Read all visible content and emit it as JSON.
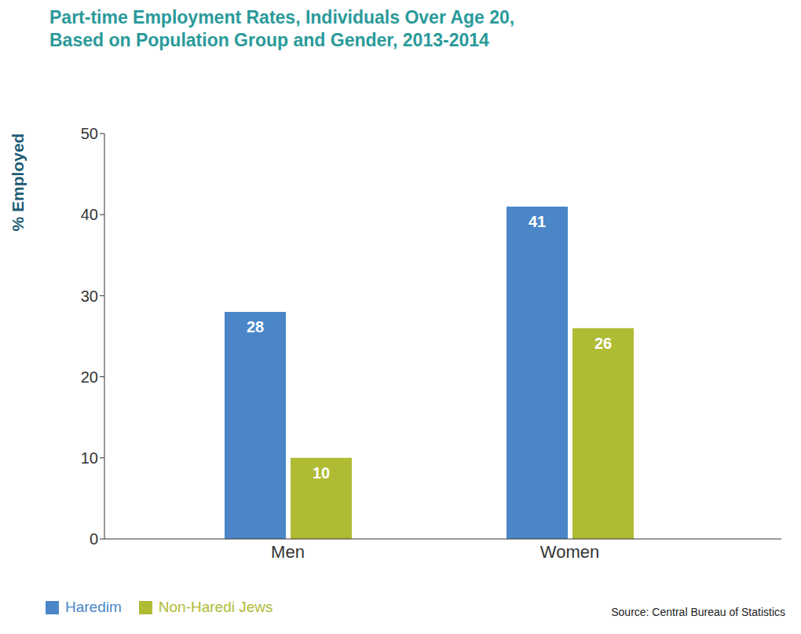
{
  "chart_data": {
    "type": "bar",
    "title": "Part-time Employment Rates, Individuals Over Age 20,\nBased on Population Group and Gender, 2013-2014",
    "y_label": "% Employed",
    "annotation": "Source: Central Bureau of Statistics",
    "categories": [
      "Men",
      "Women"
    ],
    "series": [
      {
        "name": "Haredim",
        "color": "#4a86c8",
        "values": [
          28,
          41
        ]
      },
      {
        "name": "Non-Haredi Jews",
        "color": "#b0bb34",
        "values": [
          10,
          26
        ]
      }
    ],
    "ylim": [
      0,
      50
    ],
    "yticks": [
      0,
      10,
      20,
      30,
      40,
      50
    ],
    "grid": false,
    "legend": "lower left",
    "data_labels": true
  }
}
